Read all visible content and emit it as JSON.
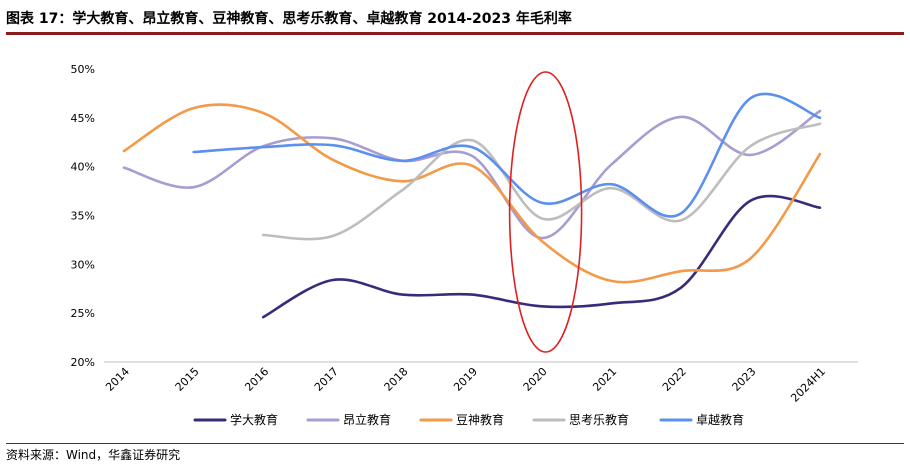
{
  "header": {
    "title": "图表 17：学大教育、昂立教育、豆神教育、思考乐教育、卓越教育 2014-2023 年毛利率"
  },
  "footer": {
    "source": "资料来源：Wind，华鑫证券研究"
  },
  "colors": {
    "学大教育": "#3b2a7a",
    "昂立教育": "#a89cd0",
    "豆神教育": "#f29a48",
    "思考乐教育": "#bdbdbd",
    "卓越教育": "#5b8ff0",
    "highlight": "#e02020",
    "axis": "#bfbfbf"
  },
  "chart_data": {
    "type": "line",
    "title": "学大教育、昂立教育、豆神教育、思考乐教育、卓越教育 2014-2023 年毛利率",
    "categories": [
      "2014",
      "2015",
      "2016",
      "2017",
      "2018",
      "2019",
      "2020",
      "2021",
      "2022",
      "2023",
      "2024H1"
    ],
    "y_tick_labels": [
      "20%",
      "25%",
      "30%",
      "35%",
      "40%",
      "45%",
      "50%"
    ],
    "ylim": [
      20,
      50
    ],
    "xlabel": "",
    "ylabel": "",
    "grid": false,
    "legend_position": "bottom",
    "annotation": "red ellipse highlighting 2020",
    "series": [
      {
        "name": "学大教育",
        "values": [
          null,
          null,
          24.6,
          28.4,
          26.9,
          26.9,
          25.7,
          26.0,
          27.6,
          36.5,
          35.8
        ]
      },
      {
        "name": "昂立教育",
        "values": [
          39.9,
          37.9,
          42.1,
          42.9,
          40.6,
          41.1,
          32.7,
          40.2,
          45.1,
          41.2,
          45.7
        ]
      },
      {
        "name": "豆神教育",
        "values": [
          41.6,
          46.0,
          45.5,
          40.7,
          38.5,
          40.1,
          32.4,
          28.3,
          29.3,
          30.6,
          41.3
        ]
      },
      {
        "name": "思考乐教育",
        "values": [
          null,
          null,
          33.0,
          32.9,
          37.6,
          42.7,
          34.7,
          37.8,
          34.5,
          42.1,
          44.4
        ]
      },
      {
        "name": "卓越教育",
        "values": [
          null,
          41.5,
          42.0,
          42.2,
          40.6,
          42.0,
          36.3,
          38.2,
          35.2,
          47.0,
          45.0
        ]
      }
    ]
  }
}
